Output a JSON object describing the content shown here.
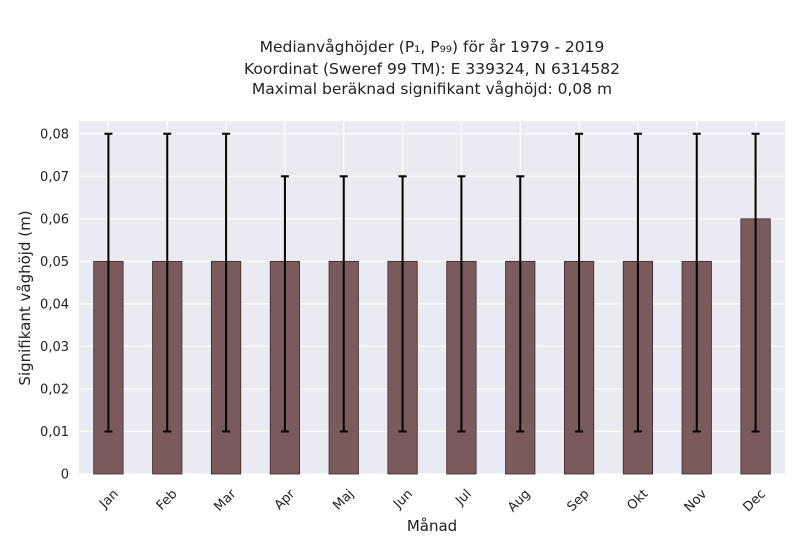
{
  "chart_data": {
    "type": "bar",
    "title_lines": [
      "Medianvåghöjder (P₁, P₉₉) för år 1979 - 2019",
      "Koordinat (Sweref 99 TM): E 339324, N 6314582",
      "Maximal beräknad signifikant våghöjd: 0,08 m"
    ],
    "xlabel": "Månad",
    "ylabel": "Signifikant våghöjd (m)",
    "categories": [
      "Jan",
      "Feb",
      "Mar",
      "Apr",
      "Maj",
      "Jun",
      "Jul",
      "Aug",
      "Sep",
      "Okt",
      "Nov",
      "Dec"
    ],
    "values": [
      0.05,
      0.05,
      0.05,
      0.05,
      0.05,
      0.05,
      0.05,
      0.05,
      0.05,
      0.05,
      0.05,
      0.06
    ],
    "error_low": [
      0.01,
      0.01,
      0.01,
      0.01,
      0.01,
      0.01,
      0.01,
      0.01,
      0.01,
      0.01,
      0.01,
      0.01
    ],
    "error_high": [
      0.08,
      0.08,
      0.08,
      0.07,
      0.07,
      0.07,
      0.07,
      0.07,
      0.08,
      0.08,
      0.08,
      0.08
    ],
    "ylim": [
      0,
      0.083
    ],
    "yticks": [
      0,
      0.01,
      0.02,
      0.03,
      0.04,
      0.05,
      0.06,
      0.07,
      0.08
    ],
    "ytick_labels": [
      "0",
      "0,01",
      "0,02",
      "0,03",
      "0,04",
      "0,05",
      "0,06",
      "0,07",
      "0,08"
    ],
    "grid": true,
    "colors": {
      "bar": "#7b5a5c",
      "bar_edge": "#3a2a2b",
      "error": "#000000",
      "background": "#eaeaf2",
      "grid": "#ffffff"
    }
  }
}
